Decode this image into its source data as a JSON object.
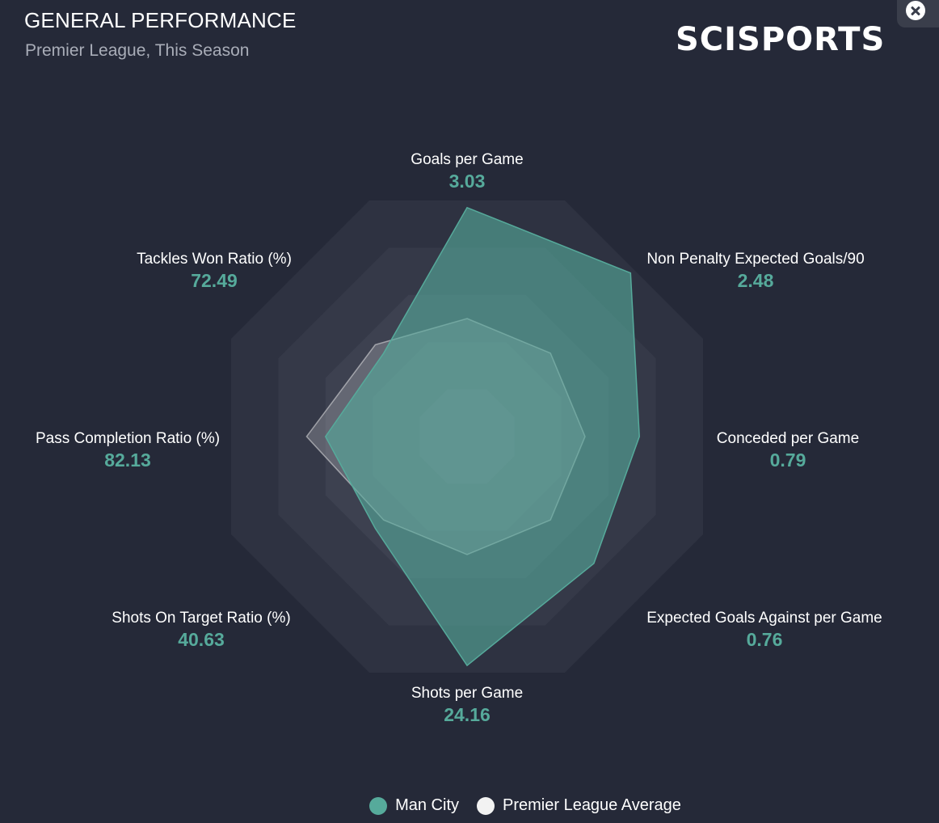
{
  "header": {
    "title": "GENERAL PERFORMANCE",
    "subtitle": "Premier League, This Season",
    "logo_text": "SCISPORTS"
  },
  "close_icon": "close-circle-icon",
  "colors": {
    "background": "#252938",
    "team": "#56aa9b",
    "average": "#f2f2f2"
  },
  "chart_data": {
    "type": "radar",
    "axes": [
      {
        "label": "Goals per Game",
        "value": "3.03"
      },
      {
        "label": "Non Penalty Expected Goals/90",
        "value": "2.48"
      },
      {
        "label": "Conceded per Game",
        "value": "0.79"
      },
      {
        "label": "Expected Goals Against per Game",
        "value": "0.76"
      },
      {
        "label": "Shots per Game",
        "value": "24.16"
      },
      {
        "label": "Shots On Target Ratio (%)",
        "value": "40.63"
      },
      {
        "label": "Pass Completion Ratio (%)",
        "value": "82.13"
      },
      {
        "label": "Tackles Won Ratio (%)",
        "value": "72.49"
      }
    ],
    "rings": 5,
    "series": [
      {
        "name": "Man City",
        "color": "#56aa9b",
        "values": [
          0.97,
          0.98,
          0.73,
          0.76,
          0.97,
          0.55,
          0.6,
          0.5
        ]
      },
      {
        "name": "Premier League Average",
        "color": "#f2f2f2",
        "values": [
          0.5,
          0.5,
          0.5,
          0.5,
          0.5,
          0.5,
          0.68,
          0.55
        ]
      }
    ]
  },
  "legend": [
    {
      "name": "Man City",
      "color": "#56aa9b"
    },
    {
      "name": "Premier League Average",
      "color": "#f2f2f2"
    }
  ]
}
